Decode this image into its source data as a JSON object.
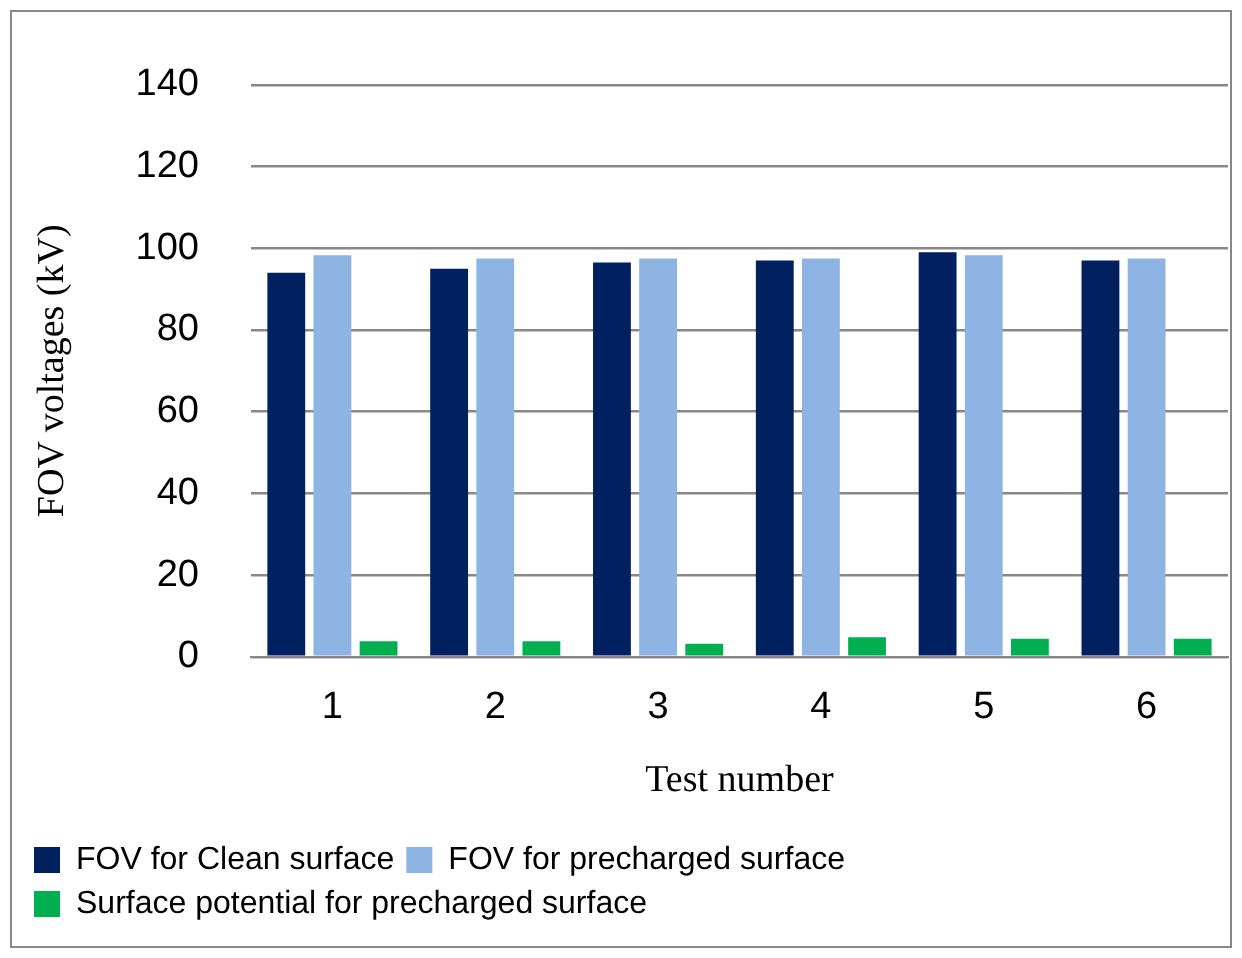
{
  "chart_data": {
    "type": "bar",
    "xlabel": "Test number",
    "ylabel": "FOV voltages (kV)",
    "categories": [
      "1",
      "2",
      "3",
      "4",
      "5",
      "6"
    ],
    "series": [
      {
        "name": "FOV for Clean surface",
        "color": "#002060",
        "values": [
          94,
          95,
          96.5,
          97,
          99,
          97
        ]
      },
      {
        "name": "FOV for precharged surface",
        "color": "#8eb4e3",
        "values": [
          98.3,
          97.5,
          97.5,
          97.5,
          98.3,
          97.5
        ]
      },
      {
        "name": "Surface potential for precharged surface",
        "color": "#00b050",
        "values": [
          3.8,
          3.8,
          3.2,
          4.8,
          4.4,
          4.4
        ]
      }
    ],
    "ylim": [
      0,
      140
    ],
    "yticks": [
      0,
      20,
      40,
      60,
      80,
      100,
      120,
      140
    ],
    "grid": "y",
    "legend": "bottom left"
  }
}
